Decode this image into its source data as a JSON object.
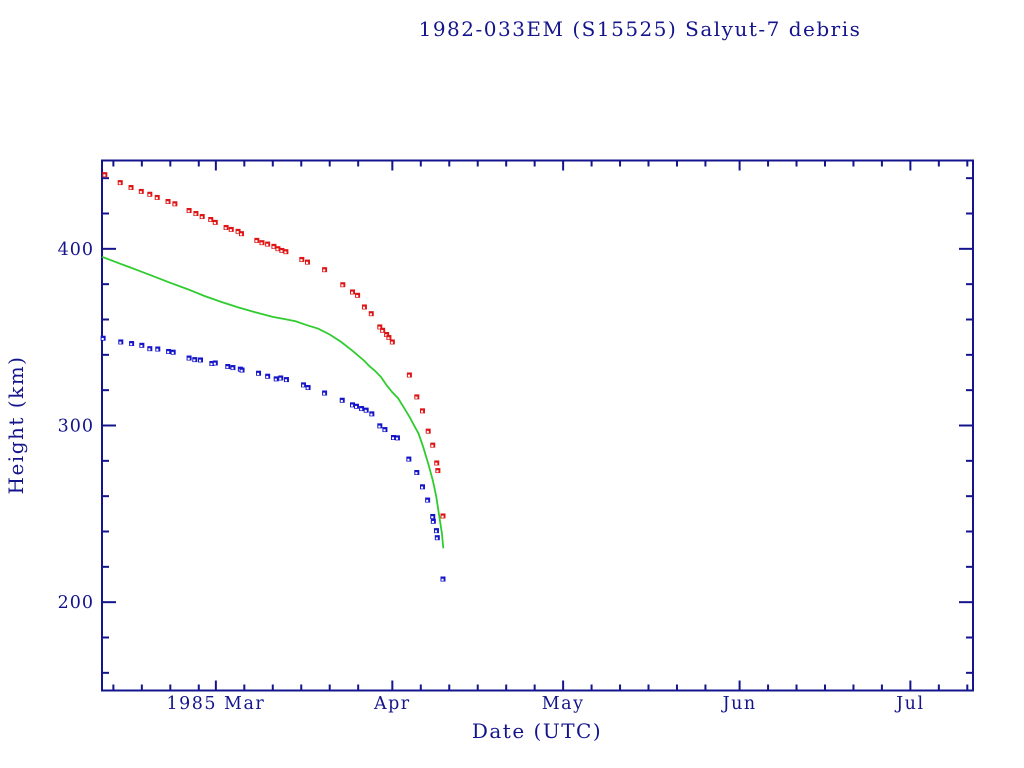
{
  "colors": {
    "frame": "#14148c",
    "label_text": "#14148c",
    "red_series": "#df1414",
    "blue_series": "#1414c8",
    "green_series": "#2fcc2f",
    "marker_hole": "#ffffff",
    "background": "#ffffff"
  },
  "chart_data": {
    "type": "scatter",
    "title": "1982-033EM (S15525) Salyut-7 debris",
    "xlabel": "Date (UTC)",
    "ylabel": "Height (km)",
    "x_axis": {
      "unit": "days from left edge (1985 Feb 9)",
      "range": [
        0,
        153
      ],
      "month_ticks": [
        {
          "label": "1985 Mar",
          "day": 20
        },
        {
          "label": "Apr",
          "day": 51
        },
        {
          "label": "May",
          "day": 81
        },
        {
          "label": "Jun",
          "day": 112
        },
        {
          "label": "Jul",
          "day": 142
        }
      ],
      "minor_tick_days": [
        2,
        7,
        12,
        17,
        25,
        30,
        35,
        40,
        45,
        56,
        61,
        66,
        71,
        76,
        86,
        91,
        96,
        101,
        106,
        117,
        122,
        127,
        132,
        137,
        147,
        152
      ]
    },
    "y_axis": {
      "range": [
        150,
        450
      ],
      "major_ticks": [
        {
          "label": "400",
          "value": 400
        },
        {
          "label": "300",
          "value": 300
        },
        {
          "label": "200",
          "value": 200
        }
      ],
      "minor_ticks": [
        160,
        180,
        220,
        240,
        260,
        280,
        320,
        340,
        360,
        380,
        420,
        440
      ]
    },
    "series": [
      {
        "name": "red-squares-upper-height",
        "style": "marker",
        "color_key": "red_series",
        "points": [
          [
            0.5,
            442.0
          ],
          [
            3.2,
            437.5
          ],
          [
            5.1,
            434.7
          ],
          [
            6.9,
            432.5
          ],
          [
            8.4,
            430.9
          ],
          [
            9.7,
            429.1
          ],
          [
            11.6,
            426.8
          ],
          [
            12.8,
            425.5
          ],
          [
            15.3,
            421.7
          ],
          [
            16.5,
            420.0
          ],
          [
            17.6,
            418.3
          ],
          [
            19.1,
            416.6
          ],
          [
            19.9,
            415.0
          ],
          [
            21.8,
            412.1
          ],
          [
            22.7,
            411.0
          ],
          [
            23.9,
            409.9
          ],
          [
            24.5,
            408.6
          ],
          [
            27.2,
            404.8
          ],
          [
            28.1,
            403.5
          ],
          [
            29.1,
            402.7
          ],
          [
            30.2,
            401.4
          ],
          [
            30.9,
            400.1
          ],
          [
            31.6,
            399.1
          ],
          [
            32.3,
            398.4
          ],
          [
            35.1,
            394.0
          ],
          [
            36.1,
            392.5
          ],
          [
            39.1,
            388.2
          ],
          [
            42.3,
            379.7
          ],
          [
            44.0,
            375.6
          ],
          [
            44.9,
            373.7
          ],
          [
            46.1,
            367.1
          ],
          [
            47.3,
            363.3
          ],
          [
            48.8,
            355.8
          ],
          [
            49.3,
            353.9
          ],
          [
            50.0,
            351.5
          ],
          [
            50.4,
            349.8
          ],
          [
            51.0,
            347.3
          ],
          [
            54.0,
            328.6
          ],
          [
            55.3,
            316.2
          ],
          [
            56.3,
            308.3
          ],
          [
            57.3,
            296.8
          ],
          [
            58.1,
            288.9
          ],
          [
            58.8,
            278.8
          ],
          [
            59.0,
            274.5
          ],
          [
            59.9,
            248.8
          ]
        ]
      },
      {
        "name": "blue-squares-lower-height",
        "style": "marker",
        "color_key": "blue_series",
        "points": [
          [
            0.2,
            349.4
          ],
          [
            3.3,
            347.3
          ],
          [
            5.2,
            346.4
          ],
          [
            7.0,
            345.4
          ],
          [
            8.4,
            343.5
          ],
          [
            9.8,
            343.3
          ],
          [
            11.7,
            341.9
          ],
          [
            12.5,
            341.5
          ],
          [
            15.3,
            338.2
          ],
          [
            16.3,
            337.3
          ],
          [
            17.3,
            337.1
          ],
          [
            19.3,
            335.1
          ],
          [
            19.9,
            335.4
          ],
          [
            22.1,
            333.4
          ],
          [
            23.0,
            332.8
          ],
          [
            24.3,
            331.9
          ],
          [
            24.6,
            331.4
          ],
          [
            27.5,
            329.6
          ],
          [
            29.1,
            327.9
          ],
          [
            30.6,
            326.4
          ],
          [
            31.4,
            326.9
          ],
          [
            32.4,
            326.0
          ],
          [
            35.4,
            323.0
          ],
          [
            36.2,
            321.5
          ],
          [
            39.1,
            318.4
          ],
          [
            42.2,
            314.3
          ],
          [
            44.0,
            311.7
          ],
          [
            44.7,
            310.9
          ],
          [
            45.6,
            309.6
          ],
          [
            46.4,
            308.7
          ],
          [
            47.4,
            306.6
          ],
          [
            48.8,
            299.8
          ],
          [
            49.7,
            297.7
          ],
          [
            51.2,
            293.2
          ],
          [
            51.9,
            293.0
          ],
          [
            53.9,
            281.0
          ],
          [
            55.3,
            273.4
          ],
          [
            56.3,
            265.3
          ],
          [
            57.2,
            257.8
          ],
          [
            58.1,
            248.5
          ],
          [
            58.2,
            245.8
          ],
          [
            58.75,
            240.5
          ],
          [
            58.9,
            236.5
          ],
          [
            59.9,
            213.1
          ]
        ]
      },
      {
        "name": "green-line-fitted-height",
        "style": "line",
        "color_key": "green_series",
        "points": [
          [
            0,
            395.5
          ],
          [
            3,
            391.8
          ],
          [
            6,
            388.2
          ],
          [
            9,
            384.5
          ],
          [
            12,
            380.8
          ],
          [
            15,
            377.2
          ],
          [
            18,
            373.3
          ],
          [
            21,
            369.9
          ],
          [
            24,
            366.8
          ],
          [
            27,
            364.0
          ],
          [
            30,
            361.5
          ],
          [
            32,
            360.3
          ],
          [
            34,
            359.0
          ],
          [
            36,
            356.8
          ],
          [
            38,
            354.8
          ],
          [
            40,
            351.5
          ],
          [
            42,
            347.3
          ],
          [
            44,
            342.3
          ],
          [
            46,
            336.8
          ],
          [
            47,
            333.5
          ],
          [
            48,
            330.8
          ],
          [
            49,
            327.5
          ],
          [
            50,
            322.8
          ],
          [
            51,
            318.8
          ],
          [
            52,
            315.5
          ],
          [
            53,
            310.3
          ],
          [
            54,
            305.0
          ],
          [
            55,
            299.0
          ],
          [
            55.6,
            295.5
          ],
          [
            56.4,
            288.0
          ],
          [
            57.3,
            278.5
          ],
          [
            58.1,
            269.0
          ],
          [
            58.7,
            260.0
          ],
          [
            59.25,
            248.5
          ],
          [
            59.7,
            239.0
          ],
          [
            59.95,
            230.5
          ]
        ]
      }
    ]
  }
}
